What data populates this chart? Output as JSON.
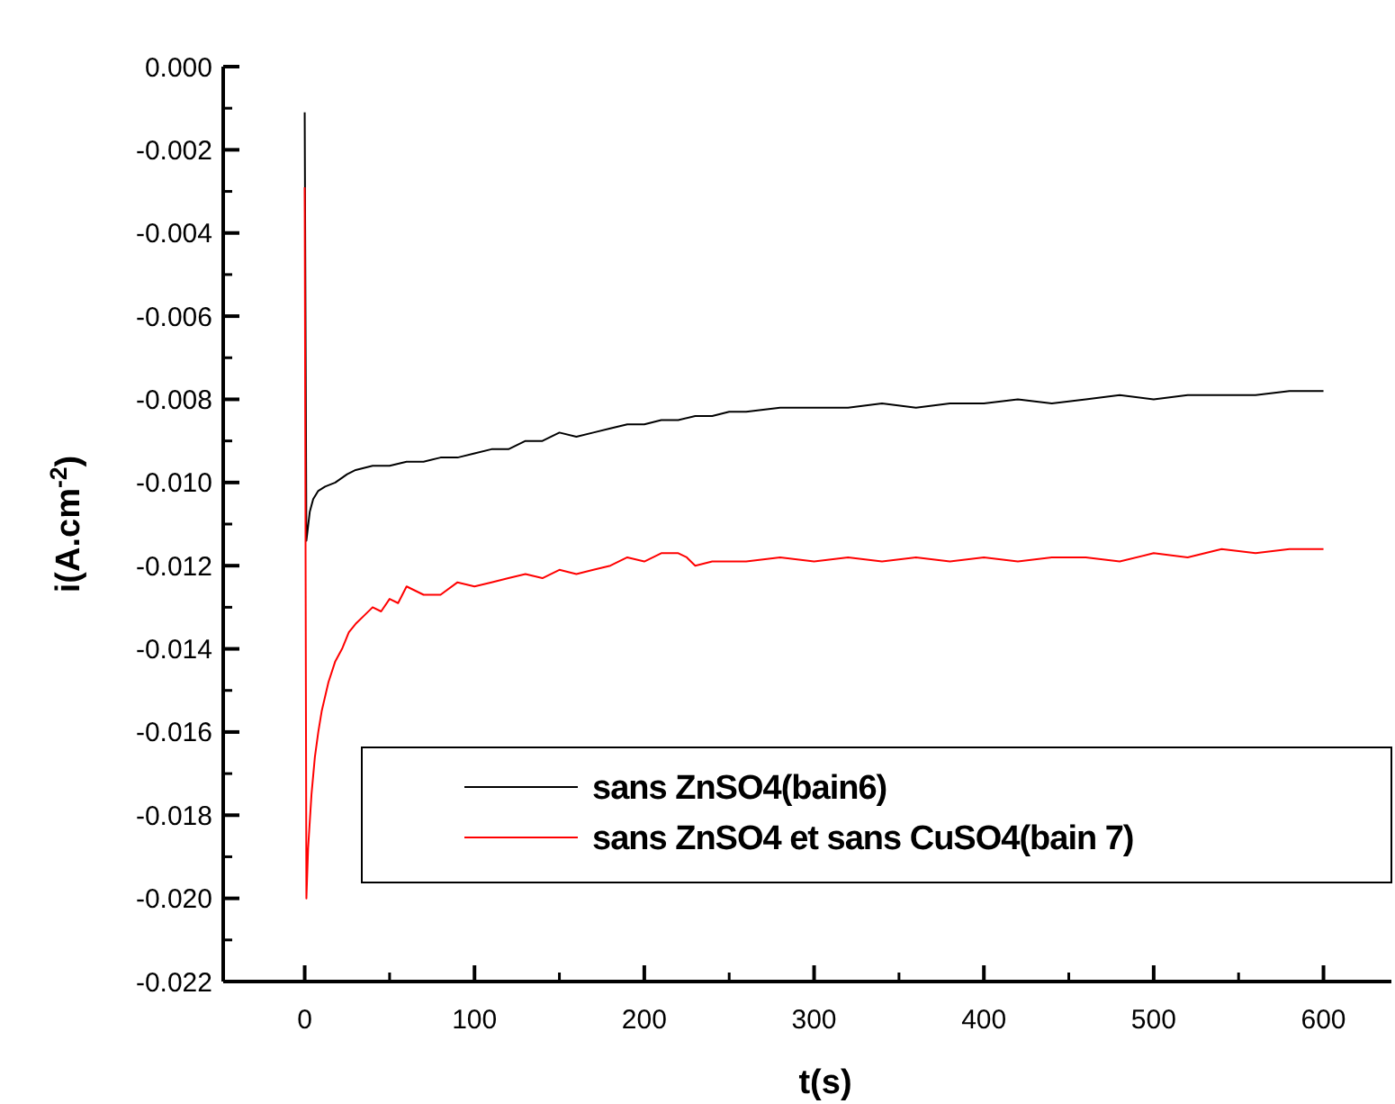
{
  "chart_data": {
    "type": "line",
    "xlabel": "t(s)",
    "ylabel": "i(A.cm$^{-2}$)",
    "xlim": [
      -48,
      640
    ],
    "xticks": [
      0,
      100,
      200,
      300,
      400,
      500,
      600
    ],
    "ylim": [
      -0.022,
      0
    ],
    "yticks": [
      {
        "value": 0,
        "label": "0.000"
      },
      {
        "value": -0.002,
        "label": "-0.002"
      },
      {
        "value": -0.004,
        "label": "-0.004"
      },
      {
        "value": -0.006,
        "label": "-0.006"
      },
      {
        "value": -0.008,
        "label": "-0.008"
      },
      {
        "value": -0.01,
        "label": "-0.010"
      },
      {
        "value": -0.012,
        "label": "-0.012"
      },
      {
        "value": -0.014,
        "label": "-0.014"
      },
      {
        "value": -0.016,
        "label": "-0.016"
      },
      {
        "value": -0.018,
        "label": "-0.018"
      },
      {
        "value": -0.02,
        "label": "-0.020"
      },
      {
        "value": -0.022,
        "label": "-0.022"
      }
    ],
    "grid": false,
    "legend": "bottom right",
    "marker": "none",
    "line_style": "solid",
    "series": [
      {
        "name": "sans ZnSO4(bain6)",
        "color": "#000000",
        "x": [
          0,
          1,
          3,
          5,
          8,
          12,
          18,
          25,
          30,
          40,
          50,
          60,
          70,
          80,
          90,
          100,
          110,
          120,
          130,
          140,
          150,
          160,
          170,
          180,
          190,
          200,
          210,
          220,
          230,
          240,
          250,
          260,
          280,
          300,
          320,
          340,
          360,
          380,
          400,
          420,
          440,
          460,
          480,
          500,
          520,
          540,
          560,
          580,
          600
        ],
        "values": [
          -0.0011,
          -0.0114,
          -0.0107,
          -0.0104,
          -0.0102,
          -0.0101,
          -0.01,
          -0.0098,
          -0.0097,
          -0.0096,
          -0.0096,
          -0.0095,
          -0.0095,
          -0.0094,
          -0.0094,
          -0.0093,
          -0.0092,
          -0.0092,
          -0.009,
          -0.009,
          -0.0088,
          -0.0089,
          -0.0088,
          -0.0087,
          -0.0086,
          -0.0086,
          -0.0085,
          -0.0085,
          -0.0084,
          -0.0084,
          -0.0083,
          -0.0083,
          -0.0082,
          -0.0082,
          -0.0082,
          -0.0081,
          -0.0082,
          -0.0081,
          -0.0081,
          -0.008,
          -0.0081,
          -0.008,
          -0.0079,
          -0.008,
          -0.0079,
          -0.0079,
          -0.0079,
          -0.0078,
          -0.0078
        ]
      },
      {
        "name": "sans ZnSO4 et sans CuSO4(bain 7)",
        "color": "#ff0000",
        "x": [
          0,
          1,
          2,
          4,
          6,
          8,
          10,
          14,
          18,
          22,
          26,
          30,
          35,
          40,
          45,
          50,
          55,
          60,
          70,
          80,
          90,
          100,
          110,
          120,
          130,
          140,
          150,
          160,
          170,
          180,
          190,
          200,
          210,
          220,
          225,
          230,
          240,
          260,
          280,
          300,
          320,
          340,
          360,
          380,
          400,
          420,
          440,
          460,
          480,
          500,
          520,
          540,
          560,
          580,
          600
        ],
        "values": [
          -0.0029,
          -0.02,
          -0.0188,
          -0.0175,
          -0.0166,
          -0.016,
          -0.0155,
          -0.0148,
          -0.0143,
          -0.014,
          -0.0136,
          -0.0134,
          -0.0132,
          -0.013,
          -0.0131,
          -0.0128,
          -0.0129,
          -0.0125,
          -0.0127,
          -0.0127,
          -0.0124,
          -0.0125,
          -0.0124,
          -0.0123,
          -0.0122,
          -0.0123,
          -0.0121,
          -0.0122,
          -0.0121,
          -0.012,
          -0.0118,
          -0.0119,
          -0.0117,
          -0.0117,
          -0.0118,
          -0.012,
          -0.0119,
          -0.0119,
          -0.0118,
          -0.0119,
          -0.0118,
          -0.0119,
          -0.0118,
          -0.0119,
          -0.0118,
          -0.0119,
          -0.0118,
          -0.0118,
          -0.0119,
          -0.0117,
          -0.0118,
          -0.0116,
          -0.0117,
          -0.0116,
          -0.0116
        ]
      }
    ]
  }
}
